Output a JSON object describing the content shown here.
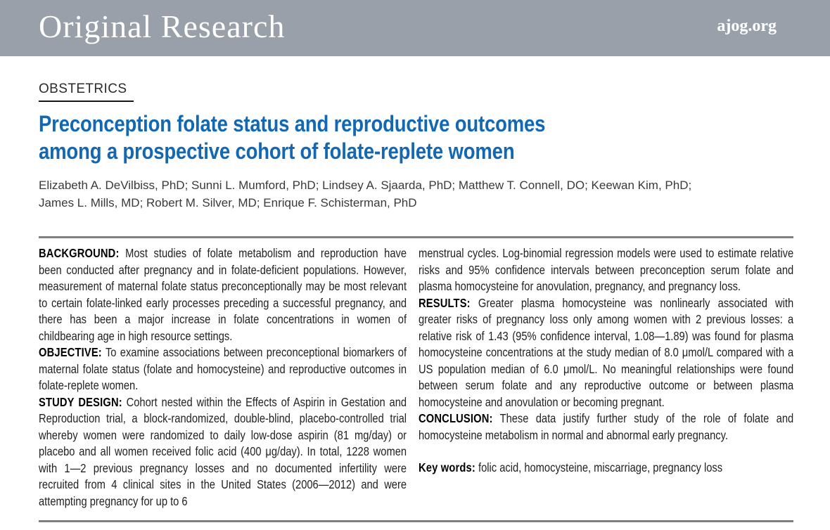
{
  "colors": {
    "banner_bg": "#99A0AA",
    "title_blue": "#1268b3",
    "rule_gray": "#7f7f7f"
  },
  "banner": {
    "label": "Original Research",
    "site": "ajog.org"
  },
  "article": {
    "kicker": "OBSTETRICS",
    "title_lines": [
      "Preconception folate status and reproductive outcomes",
      "among a prospective cohort of folate-replete women"
    ],
    "author_lines": [
      "Elizabeth A. DeVilbiss, PhD; Sunni L. Mumford, PhD; Lindsey A. Sjaarda, PhD; Matthew T. Connell, DO; Keewan Kim, PhD;",
      "James L. Mills, MD; Robert M. Silver, MD; Enrique F. Schisterman, PhD"
    ]
  },
  "abstract": {
    "left_column": [
      {
        "label": "BACKGROUND:",
        "text": "Most studies of folate metabolism and reproduction have been conducted after pregnancy and in folate-deficient populations. However, measurement of maternal folate status preconceptionally may be most relevant to certain folate-linked early processes preceding a successful pregnancy, and there has been a major increase in folate concentrations in women of childbearing age in high resource settings."
      },
      {
        "label": "OBJECTIVE:",
        "text": "To examine associations between preconceptional biomarkers of maternal folate status (folate and homocysteine) and reproductive outcomes in folate-replete women."
      },
      {
        "label": "STUDY DESIGN:",
        "text": "Cohort nested within the Effects of Aspirin in Gestation and Reproduction trial, a block-randomized, double-blind, placebo-controlled trial whereby women were randomized to daily low-dose aspirin (81 mg/day) or placebo and all women received folic acid (400 μg/day). In total, 1228 women with 1—2 previous pregnancy losses and no documented infertility were recruited from 4 clinical sites in the United States (2006—2012) and were attempting pregnancy for up to 6"
      }
    ],
    "right_column": [
      {
        "label": "",
        "text": "menstrual cycles. Log-binomial regression models were used to estimate relative risks and 95% confidence intervals between preconception serum folate and plasma homocysteine for anovulation, pregnancy, and pregnancy loss."
      },
      {
        "label": "RESULTS:",
        "text": "Greater plasma homocysteine was nonlinearly associated with greater risks of pregnancy loss only among women with 2 previous losses: a relative risk of 1.43 (95% confidence interval, 1.08—1.89) was found for plasma homocysteine concentrations at the study median of 8.0 μmol/L compared with a US population median of 6.0 μmol/L. No meaningful relationships were found between serum folate and any reproductive outcome or between plasma homocysteine and anovulation or becoming pregnant."
      },
      {
        "label": "CONCLUSION:",
        "text": "These data justify further study of the role of folate and homocysteine metabolism in normal and abnormal early pregnancy."
      },
      {
        "label": "Key words:",
        "text": "folic acid, homocysteine, miscarriage, pregnancy loss",
        "gap_before": true
      }
    ]
  }
}
